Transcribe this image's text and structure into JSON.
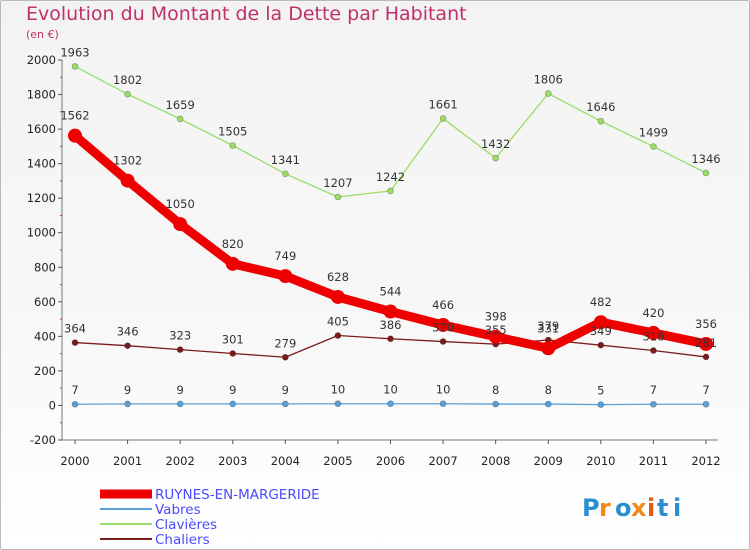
{
  "header": {
    "title": "Evolution du Montant de la Dette par Habitant",
    "unit": "(en €)"
  },
  "logo": {
    "text": "Proxiti"
  },
  "chart_data": {
    "type": "line",
    "x": [
      "2000",
      "2001",
      "2002",
      "2003",
      "2004",
      "2005",
      "2006",
      "2007",
      "2008",
      "2009",
      "2010",
      "2011",
      "2012"
    ],
    "ylim": [
      -200,
      2000
    ],
    "yticks": [
      -200,
      0,
      200,
      400,
      600,
      800,
      1000,
      1200,
      1400,
      1600,
      1800,
      2000
    ],
    "ytick_labels": [
      "-200",
      "0",
      "200",
      "400",
      "600",
      "800",
      "1000",
      "1200",
      "1400",
      "1600",
      "1800",
      "2000"
    ],
    "legend_position": "bottom-left",
    "series": [
      {
        "name": "RUYNES-EN-MARGERIDE",
        "color": "#ee0000",
        "legend_text_color": "#4a4aff",
        "values": [
          1562,
          1302,
          1050,
          820,
          749,
          628,
          544,
          466,
          398,
          331,
          482,
          420,
          356
        ],
        "labels": [
          "1562",
          "1302",
          "1050",
          "820",
          "749",
          "628",
          "544",
          "466",
          "398",
          "331",
          "482",
          "420",
          "356"
        ]
      },
      {
        "name": "Vabres",
        "color": "#5aa0d6",
        "legend_text_color": "#4a4aff",
        "values": [
          7,
          9,
          9,
          9,
          9,
          10,
          10,
          10,
          8,
          8,
          5,
          7,
          7
        ],
        "labels": [
          "7",
          "9",
          "9",
          "9",
          "9",
          "10",
          "10",
          "10",
          "8",
          "8",
          "5",
          "7",
          "7"
        ]
      },
      {
        "name": "Clavières",
        "color": "#99dd66",
        "legend_text_color": "#4a4aff",
        "values": [
          1963,
          1802,
          1659,
          1505,
          1341,
          1207,
          1242,
          1661,
          1432,
          1806,
          1646,
          1499,
          1346
        ],
        "labels": [
          "1963",
          "1802",
          "1659",
          "1505",
          "1341",
          "1207",
          "1242",
          "1661",
          "1432",
          "1806",
          "1646",
          "1499",
          "1346"
        ]
      },
      {
        "name": "Chaliers",
        "color": "#7a1c1c",
        "legend_text_color": "#4a4aff",
        "values": [
          364,
          346,
          323,
          301,
          279,
          405,
          386,
          370,
          355,
          379,
          349,
          318,
          281
        ],
        "labels": [
          "364",
          "346",
          "323",
          "301",
          "279",
          "405",
          "386",
          "370",
          "355",
          "379",
          "349",
          "318",
          "281"
        ]
      }
    ]
  }
}
